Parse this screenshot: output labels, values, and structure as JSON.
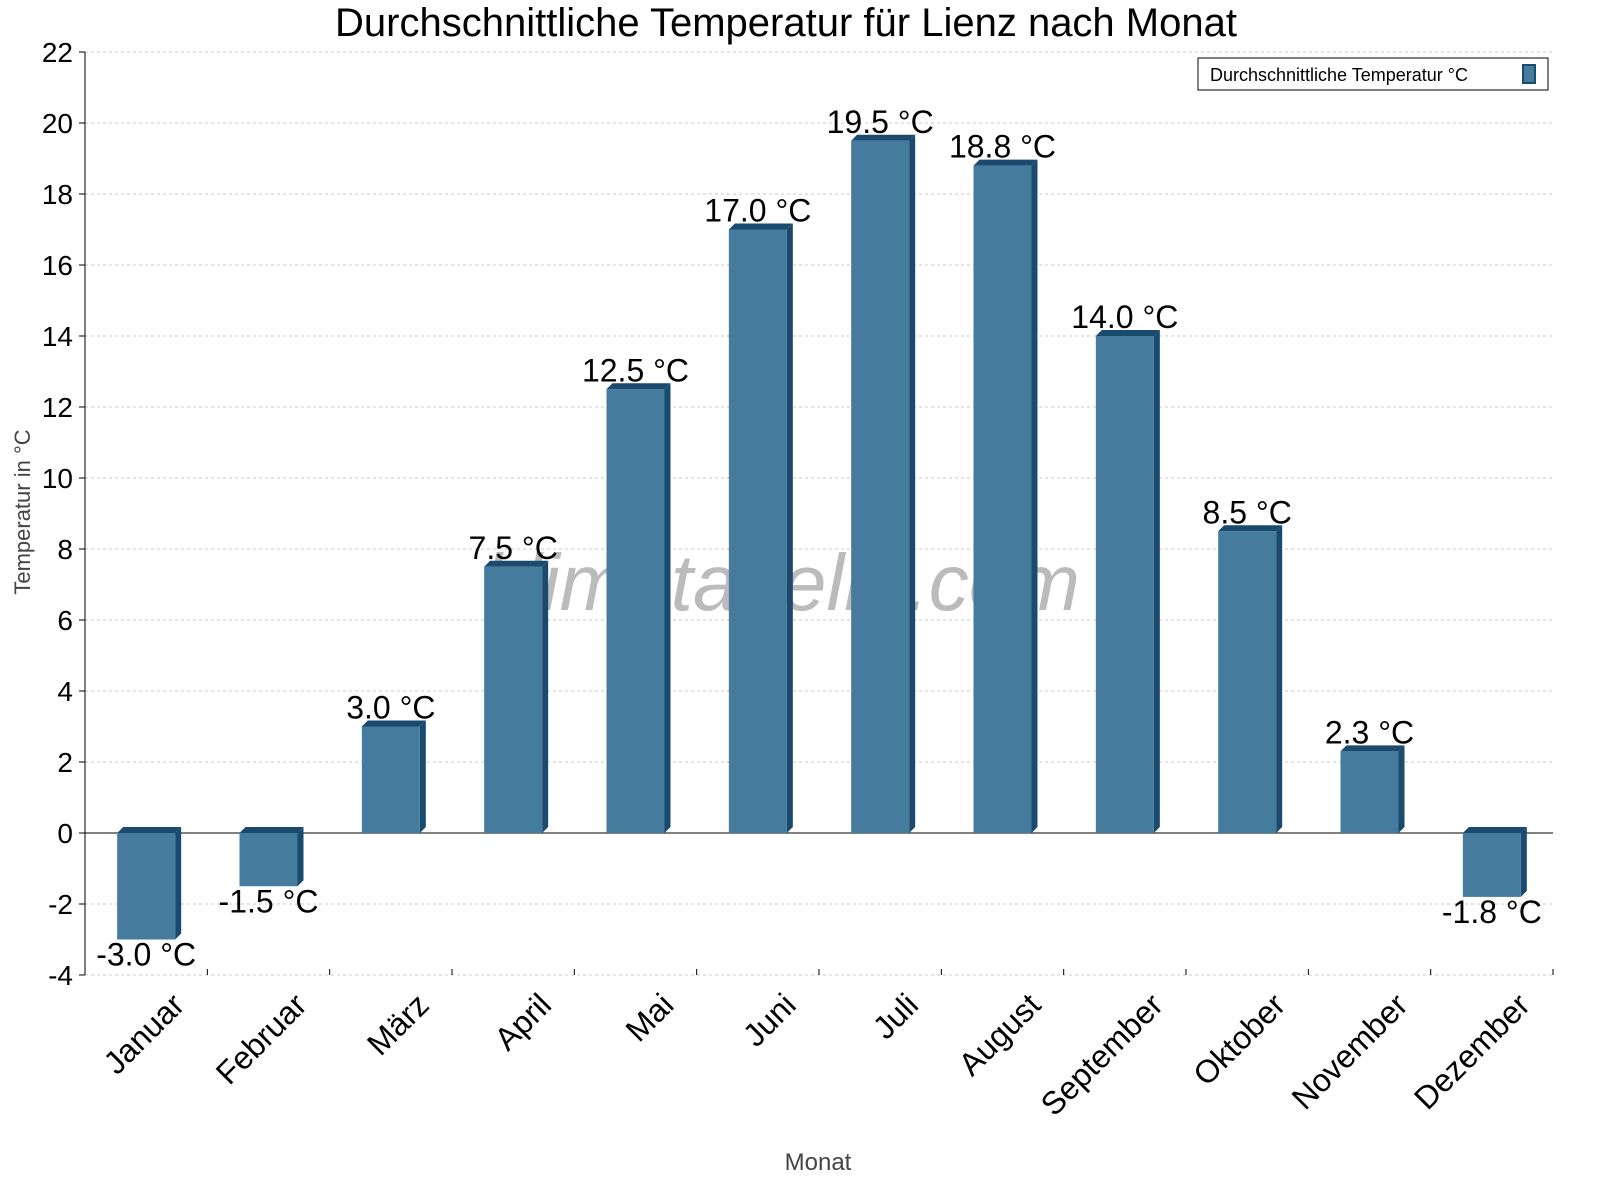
{
  "chart_data": {
    "type": "bar",
    "title": "Durchschnittliche Temperatur für Lienz nach Monat",
    "xlabel": "Monat",
    "ylabel": "Temperatur in °C",
    "categories": [
      "Januar",
      "Februar",
      "März",
      "April",
      "Mai",
      "Juni",
      "Juli",
      "August",
      "September",
      "Oktober",
      "November",
      "Dezember"
    ],
    "series": [
      {
        "name": "Durchschnittliche Temperatur °C",
        "values": [
          -3.0,
          -1.5,
          3.0,
          7.5,
          12.5,
          17.0,
          19.5,
          18.8,
          14.0,
          8.5,
          2.3,
          -1.8
        ],
        "labels": [
          "-3.0 °C",
          "-1.5 °C",
          "3.0 °C",
          "7.5 °C",
          "12.5 °C",
          "17.0 °C",
          "19.5 °C",
          "18.8 °C",
          "14.0 °C",
          "8.5 °C",
          "2.3 °C",
          "-1.8 °C"
        ]
      }
    ],
    "ylim": [
      -4,
      22
    ],
    "yticks": [
      "-4",
      "-2",
      "0",
      "2",
      "4",
      "6",
      "8",
      "10",
      "12",
      "14",
      "16",
      "18",
      "20",
      "22"
    ],
    "grid": true,
    "legend_position": "top-right",
    "colors": {
      "bar_front": "#457b9d",
      "bar_side": "#1a4a6e",
      "grid": "#c8c8c8"
    },
    "watermark": "klimatabelle.com"
  }
}
